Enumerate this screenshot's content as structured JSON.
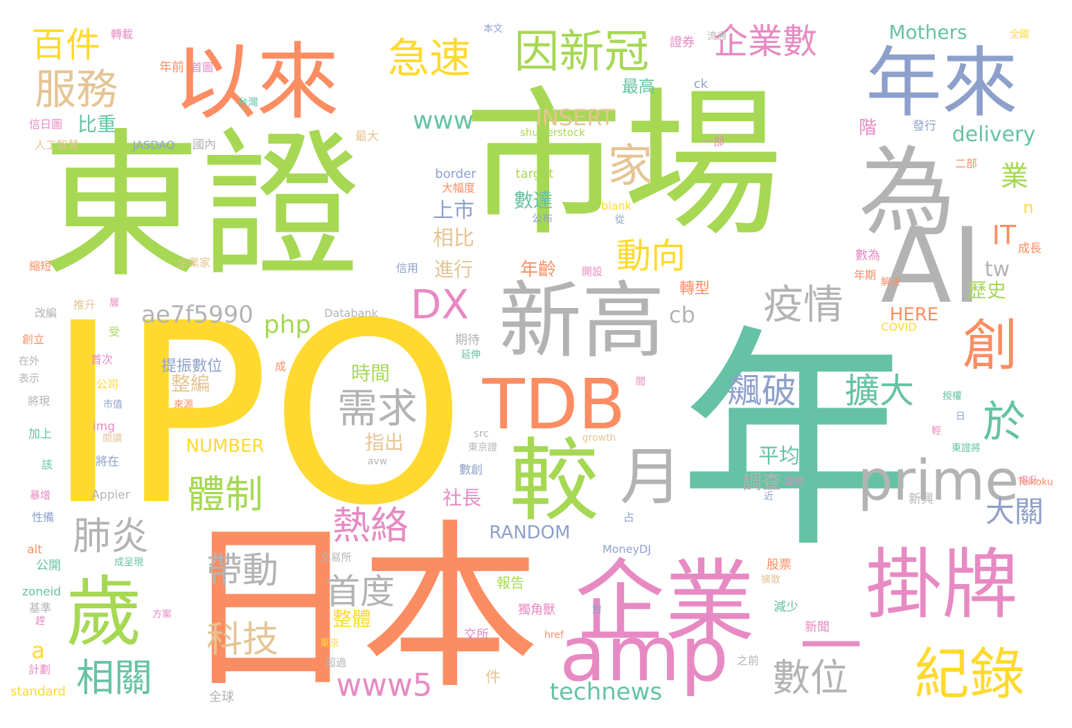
{
  "words": [
    {
      "text": "東證",
      "color": "#a6d854"
    },
    {
      "text": "市場",
      "color": "#a6d854"
    },
    {
      "text": "IPO",
      "color": "#ffd92f"
    },
    {
      "text": "年",
      "color": "#66c2a5"
    },
    {
      "text": "日本",
      "color": "#fc8d62"
    },
    {
      "text": "以來",
      "color": "#fc8d62"
    },
    {
      "text": "年來",
      "color": "#8da0cb"
    },
    {
      "text": "為",
      "color": "#b3b3b3"
    },
    {
      "text": "AI",
      "color": "#b3b3b3"
    },
    {
      "text": "新高",
      "color": "#b3b3b3"
    },
    {
      "text": "企業",
      "color": "#e78ac3"
    },
    {
      "text": "掛牌",
      "color": "#e78ac3"
    },
    {
      "text": "較",
      "color": "#a6d854"
    },
    {
      "text": "TDB",
      "color": "#fc8d62"
    },
    {
      "text": "amp",
      "color": "#e78ac3"
    },
    {
      "text": "一",
      "color": "#e78ac3"
    },
    {
      "text": "歲",
      "color": "#a6d854"
    },
    {
      "text": "紀錄",
      "color": "#ffd92f"
    },
    {
      "text": "prime",
      "color": "#b3b3b3"
    },
    {
      "text": "月",
      "color": "#b3b3b3"
    },
    {
      "text": "創",
      "color": "#fc8d62"
    },
    {
      "text": "因新冠",
      "color": "#a6d854"
    },
    {
      "text": "急速",
      "color": "#ffd92f"
    },
    {
      "text": "企業數",
      "color": "#e78ac3"
    },
    {
      "text": "服務",
      "color": "#e5c494"
    },
    {
      "text": "百件",
      "color": "#ffd92f"
    },
    {
      "text": "家",
      "color": "#e5c494"
    },
    {
      "text": "疫情",
      "color": "#b3b3b3"
    },
    {
      "text": "需求",
      "color": "#b3b3b3"
    },
    {
      "text": "體制",
      "color": "#a6d854"
    },
    {
      "text": "帶動",
      "color": "#b3b3b3"
    },
    {
      "text": "科技",
      "color": "#e5c494"
    },
    {
      "text": "肺炎",
      "color": "#b3b3b3"
    },
    {
      "text": "相關",
      "color": "#66c2a5"
    },
    {
      "text": "熱絡",
      "color": "#e78ac3"
    },
    {
      "text": "首度",
      "color": "#b3b3b3"
    },
    {
      "text": "飆破",
      "color": "#8da0cb"
    },
    {
      "text": "擴大",
      "color": "#66c2a5"
    },
    {
      "text": "於",
      "color": "#66c2a5"
    },
    {
      "text": "數位",
      "color": "#b3b3b3"
    },
    {
      "text": "www5",
      "color": "#e78ac3"
    },
    {
      "text": "technews",
      "color": "#66c2a5"
    },
    {
      "text": "DX",
      "color": "#e78ac3"
    },
    {
      "text": "動向",
      "color": "#ffd92f"
    },
    {
      "text": "ae7f5990",
      "color": "#b3b3b3"
    },
    {
      "text": "www",
      "color": "#66c2a5"
    },
    {
      "text": "INSERT",
      "color": "#e5c494"
    },
    {
      "text": "Mothers",
      "color": "#66c2a5"
    },
    {
      "text": "delivery",
      "color": "#66c2a5"
    },
    {
      "text": "業",
      "color": "#a6d854"
    },
    {
      "text": "IT",
      "color": "#fc8d62"
    },
    {
      "text": "tw",
      "color": "#b3b3b3"
    },
    {
      "text": "大關",
      "color": "#8da0cb"
    },
    {
      "text": "比重",
      "color": "#66c2a5"
    },
    {
      "text": "php",
      "color": "#a6d854"
    },
    {
      "text": "cb",
      "color": "#b3b3b3"
    },
    {
      "text": "時間",
      "color": "#a6d854"
    },
    {
      "text": "整編",
      "color": "#e5c494"
    },
    {
      "text": "NUMBER",
      "color": "#ffd92f"
    },
    {
      "text": "RANDOM",
      "color": "#8da0cb"
    },
    {
      "text": "上市",
      "color": "#8da0cb"
    },
    {
      "text": "相比",
      "color": "#e5c494"
    },
    {
      "text": "數達",
      "color": "#66c2a5"
    },
    {
      "text": "進行",
      "color": "#e5c494"
    },
    {
      "text": "年齡",
      "color": "#fc8d62"
    },
    {
      "text": "指出",
      "color": "#e5c494"
    },
    {
      "text": "平均",
      "color": "#66c2a5"
    },
    {
      "text": "調查",
      "color": "#b3b3b3"
    },
    {
      "text": "社長",
      "color": "#e78ac3"
    },
    {
      "text": "整體",
      "color": "#ffd92f"
    },
    {
      "text": "歷史",
      "color": "#a6d854"
    },
    {
      "text": "HERE",
      "color": "#fc8d62"
    },
    {
      "text": "a",
      "color": "#ffd92f"
    },
    {
      "text": "最高",
      "color": "#66c2a5"
    },
    {
      "text": "階",
      "color": "#e78ac3"
    },
    {
      "text": "n",
      "color": "#ffd92f"
    },
    {
      "text": "提振數位",
      "color": "#8da0cb"
    },
    {
      "text": "轉型",
      "color": "#fc8d62"
    },
    {
      "text": "年前",
      "color": "#fc8d62"
    },
    {
      "text": "首圖",
      "color": "#e78ac3"
    },
    {
      "text": "轉載",
      "color": "#e78ac3"
    },
    {
      "text": "本文",
      "color": "#8da0cb"
    },
    {
      "text": "證券",
      "color": "#e78ac3"
    },
    {
      "text": "流通",
      "color": "#b3b3b3"
    },
    {
      "text": "全國",
      "color": "#ffd92f"
    },
    {
      "text": "ck",
      "color": "#8da0cb"
    },
    {
      "text": "台灣",
      "color": "#66c2a5"
    },
    {
      "text": "信日圖",
      "color": "#e78ac3"
    },
    {
      "text": "人工智慧",
      "color": "#e5c494"
    },
    {
      "text": "JASDAQ",
      "color": "#8da0cb"
    },
    {
      "text": "國內",
      "color": "#b3b3b3"
    },
    {
      "text": "最大",
      "color": "#e5c494"
    },
    {
      "text": "shutterstock",
      "color": "#a6d854"
    },
    {
      "text": "一部",
      "color": "#e78ac3"
    },
    {
      "text": "發行",
      "color": "#8da0cb"
    },
    {
      "text": "二部",
      "color": "#fc8d62"
    },
    {
      "text": "border",
      "color": "#8da0cb"
    },
    {
      "text": "target",
      "color": "#a6d854"
    },
    {
      "text": "大幅度",
      "color": "#fc8d62"
    },
    {
      "text": "blank",
      "color": "#ffd92f"
    },
    {
      "text": "從",
      "color": "#8da0cb"
    },
    {
      "text": "公布",
      "color": "#8da0cb"
    },
    {
      "text": "縮短",
      "color": "#fc8d62"
    },
    {
      "text": "企業家",
      "color": "#e5c494"
    },
    {
      "text": "信用",
      "color": "#8da0cb"
    },
    {
      "text": "開設",
      "color": "#e78ac3"
    },
    {
      "text": "數為",
      "color": "#e78ac3"
    },
    {
      "text": "成長",
      "color": "#fc8d62"
    },
    {
      "text": "年期",
      "color": "#fc8d62"
    },
    {
      "text": "解決",
      "color": "#fc8d62"
    },
    {
      "text": "改編",
      "color": "#b3b3b3"
    },
    {
      "text": "推升",
      "color": "#e5c494"
    },
    {
      "text": "層",
      "color": "#e78ac3"
    },
    {
      "text": "Databank",
      "color": "#b3b3b3"
    },
    {
      "text": "COVID",
      "color": "#ffd92f"
    },
    {
      "text": "期待",
      "color": "#b3b3b3"
    },
    {
      "text": "延伸",
      "color": "#66c2a5"
    },
    {
      "text": "創立",
      "color": "#fc8d62"
    },
    {
      "text": "受",
      "color": "#a6d854"
    },
    {
      "text": "在外",
      "color": "#b3b3b3"
    },
    {
      "text": "首次",
      "color": "#e78ac3"
    },
    {
      "text": "成",
      "color": "#fc8d62"
    },
    {
      "text": "表示",
      "color": "#b3b3b3"
    },
    {
      "text": "公司",
      "color": "#ffd92f"
    },
    {
      "text": "間",
      "color": "#e78ac3"
    },
    {
      "text": "將現",
      "color": "#b3b3b3"
    },
    {
      "text": "市值",
      "color": "#8da0cb"
    },
    {
      "text": "來源",
      "color": "#fc8d62"
    },
    {
      "text": "img",
      "color": "#e78ac3"
    },
    {
      "text": "授權",
      "color": "#66c2a5"
    },
    {
      "text": "日",
      "color": "#8da0cb"
    },
    {
      "text": "加上",
      "color": "#66c2a5"
    },
    {
      "text": "閱讀",
      "color": "#e5c494"
    },
    {
      "text": "src",
      "color": "#b3b3b3"
    },
    {
      "text": "growth",
      "color": "#e5c494"
    },
    {
      "text": "東京證",
      "color": "#b3b3b3"
    },
    {
      "text": "輕",
      "color": "#e78ac3"
    },
    {
      "text": "東證將",
      "color": "#66c2a5"
    },
    {
      "text": "該",
      "color": "#66c2a5"
    },
    {
      "text": "將在",
      "color": "#8da0cb"
    },
    {
      "text": "avw",
      "color": "#b3b3b3"
    },
    {
      "text": "數創",
      "color": "#8da0cb"
    },
    {
      "text": "揭升",
      "color": "#e78ac3"
    },
    {
      "text": "暴增",
      "color": "#e78ac3"
    },
    {
      "text": "Appier",
      "color": "#b3b3b3"
    },
    {
      "text": "近",
      "color": "#8da0cb"
    },
    {
      "text": "提供",
      "color": "#e78ac3"
    },
    {
      "text": "Teikoku",
      "color": "#fc8d62"
    },
    {
      "text": "新興",
      "color": "#b3b3b3"
    },
    {
      "text": "性備",
      "color": "#8da0cb"
    },
    {
      "text": "占",
      "color": "#8da0cb"
    },
    {
      "text": "alt",
      "color": "#fc8d62"
    },
    {
      "text": "MoneyDJ",
      "color": "#8da0cb"
    },
    {
      "text": "成呈現",
      "color": "#66c2a5"
    },
    {
      "text": "公開",
      "color": "#66c2a5"
    },
    {
      "text": "交易所",
      "color": "#b3b3b3"
    },
    {
      "text": "報告",
      "color": "#a6d854"
    },
    {
      "text": "股票",
      "color": "#fc8d62"
    },
    {
      "text": "擴散",
      "color": "#e5c494"
    },
    {
      "text": "zoneid",
      "color": "#66c2a5"
    },
    {
      "text": "獨角獸",
      "color": "#e78ac3"
    },
    {
      "text": "對",
      "color": "#8da0cb"
    },
    {
      "text": "減少",
      "color": "#66c2a5"
    },
    {
      "text": "基準",
      "color": "#b3b3b3"
    },
    {
      "text": "方案",
      "color": "#e78ac3"
    },
    {
      "text": "趕",
      "color": "#e78ac3"
    },
    {
      "text": "交所",
      "color": "#e78ac3"
    },
    {
      "text": "href",
      "color": "#fc8d62"
    },
    {
      "text": "新聞",
      "color": "#e78ac3"
    },
    {
      "text": "東京",
      "color": "#ffd92f"
    },
    {
      "text": "計劃",
      "color": "#e78ac3"
    },
    {
      "text": "超過",
      "color": "#b3b3b3"
    },
    {
      "text": "件",
      "color": "#e5c494"
    },
    {
      "text": "之前",
      "color": "#b3b3b3"
    },
    {
      "text": "standard",
      "color": "#ffd92f"
    },
    {
      "text": "全球",
      "color": "#b3b3b3"
    }
  ]
}
